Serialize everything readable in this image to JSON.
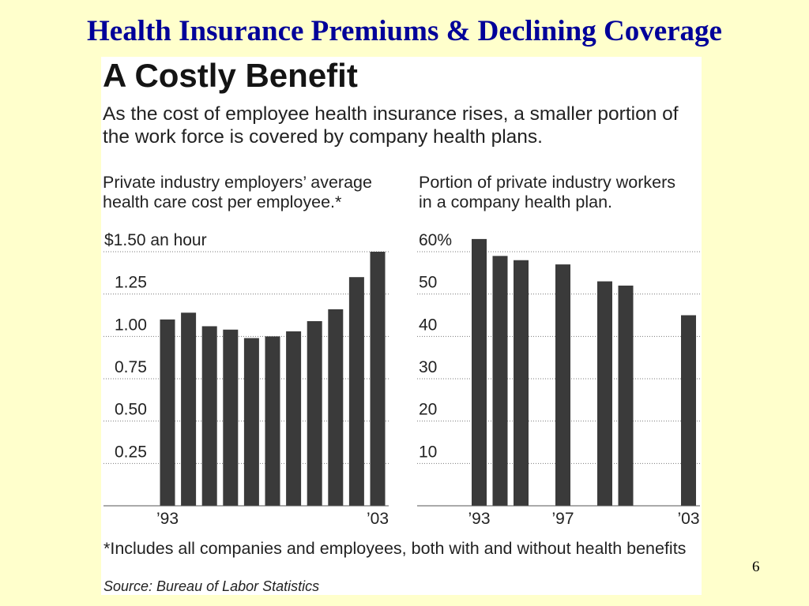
{
  "slide": {
    "title": "Health Insurance Premiums & Declining Coverage",
    "page_number": "6",
    "background_color": "#FFFFCC",
    "title_color": "#000099"
  },
  "graphic": {
    "headline": "A Costly Benefit",
    "intro_lines": [
      "As the cost of employee health insurance rises, a smaller portion of",
      "the work force is covered by company health plans."
    ],
    "footnote": "*Includes all companies and employees, both with and without health benefits",
    "source": "Source: Bureau of Labor Statistics",
    "background_color": "#FFFFFF",
    "bar_color": "#3A3A3A"
  },
  "chart_data": [
    {
      "type": "bar",
      "title_lines": [
        "Private industry employers’ average",
        "health care cost per employee.*"
      ],
      "x": [
        1993,
        1994,
        1995,
        1996,
        1997,
        1998,
        1999,
        2000,
        2001,
        2002,
        2003
      ],
      "values": [
        1.1,
        1.14,
        1.06,
        1.04,
        0.99,
        1.0,
        1.03,
        1.09,
        1.16,
        1.35,
        1.5
      ],
      "xlim": [
        1993,
        2003
      ],
      "x_ticks": [
        1993,
        2003
      ],
      "x_tick_labels": [
        "’93",
        "’03"
      ],
      "ylim": [
        0,
        1.5
      ],
      "y_ticks": [
        0.25,
        0.5,
        0.75,
        1.0,
        1.25,
        1.5
      ],
      "y_tick_labels": [
        "0.25",
        "0.50",
        "0.75",
        "1.00",
        "1.25",
        "$1.50 an hour"
      ],
      "grid": true,
      "legend": "none"
    },
    {
      "type": "bar",
      "title_lines": [
        "Portion of private industry workers",
        "in a company health plan."
      ],
      "x": [
        1993,
        1994,
        1995,
        1997,
        1999,
        2000,
        2003
      ],
      "values": [
        63,
        59,
        58,
        57,
        53,
        52,
        45
      ],
      "xlim": [
        1993,
        2003
      ],
      "x_ticks": [
        1993,
        1997,
        2003
      ],
      "x_tick_labels": [
        "’93",
        "’97",
        "’03"
      ],
      "ylim": [
        0,
        60
      ],
      "y_ticks": [
        10,
        20,
        30,
        40,
        50,
        60
      ],
      "y_tick_labels": [
        "10",
        "20",
        "30",
        "40",
        "50",
        "60%"
      ],
      "grid": true,
      "legend": "none"
    }
  ]
}
